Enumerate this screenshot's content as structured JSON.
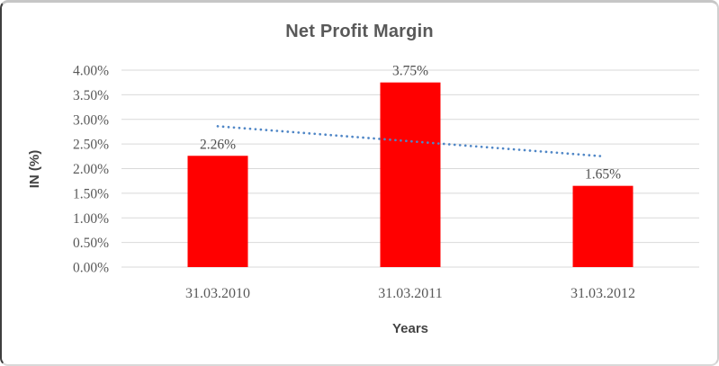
{
  "chart_data": {
    "type": "bar",
    "title": "Net Profit Margin",
    "xlabel": "Years",
    "ylabel": "IN (%)",
    "categories": [
      "31.03.2010",
      "31.03.2011",
      "31.03.2012"
    ],
    "values": [
      2.26,
      3.75,
      1.65
    ],
    "data_labels": [
      "2.26%",
      "3.75%",
      "1.65%"
    ],
    "y_ticks": [
      "4.00%",
      "3.50%",
      "3.00%",
      "2.50%",
      "2.00%",
      "1.50%",
      "1.00%",
      "0.50%",
      "0.00%"
    ],
    "ylim": [
      0,
      4.0
    ],
    "y_tick_step": 0.5,
    "grid": true,
    "legend": "none",
    "bar_color": "#ff0000",
    "gridline_color": "#d9d9d9",
    "text_color": "#595959",
    "trendline": {
      "type": "linear",
      "style": "dotted",
      "color": "#4f86c6",
      "start_value": 2.86,
      "end_value": 2.25
    }
  }
}
